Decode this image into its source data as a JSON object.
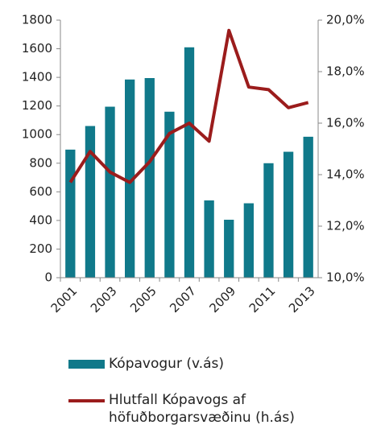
{
  "chart_data": {
    "type": "bar",
    "categories": [
      "2001",
      null,
      "2003",
      null,
      "2005",
      null,
      "2007",
      null,
      "2009",
      null,
      "2011",
      null,
      "2013"
    ],
    "series": [
      {
        "name": "Kópavogur (v.ás)",
        "type": "bar",
        "color": "#10798a",
        "values": [
          895,
          1060,
          1195,
          1385,
          1395,
          1160,
          1610,
          540,
          405,
          520,
          800,
          880,
          985
        ]
      },
      {
        "name": "Hlutfall Kópavogs af höfuðborgarsvæðinu (h.ás)",
        "type": "line",
        "axis": "y2",
        "color": "#9b1c1c",
        "values": [
          13.7,
          14.9,
          14.1,
          13.7,
          14.5,
          15.6,
          16.0,
          15.3,
          19.6,
          17.4,
          17.3,
          16.6,
          16.8
        ]
      }
    ],
    "ylim": [
      0,
      1800
    ],
    "yticks": [
      0,
      200,
      400,
      600,
      800,
      1000,
      1200,
      1400,
      1600,
      1800
    ],
    "y2lim": [
      10,
      20
    ],
    "y2ticks": [
      {
        "value": 10,
        "label": "10,0%"
      },
      {
        "value": 12,
        "label": "12,0%"
      },
      {
        "value": 14,
        "label": "14,0%"
      },
      {
        "value": 16,
        "label": "16,0%"
      },
      {
        "value": 18,
        "label": "18,0%"
      },
      {
        "value": 20,
        "label": "20,0%"
      }
    ],
    "legend": "bottom"
  }
}
